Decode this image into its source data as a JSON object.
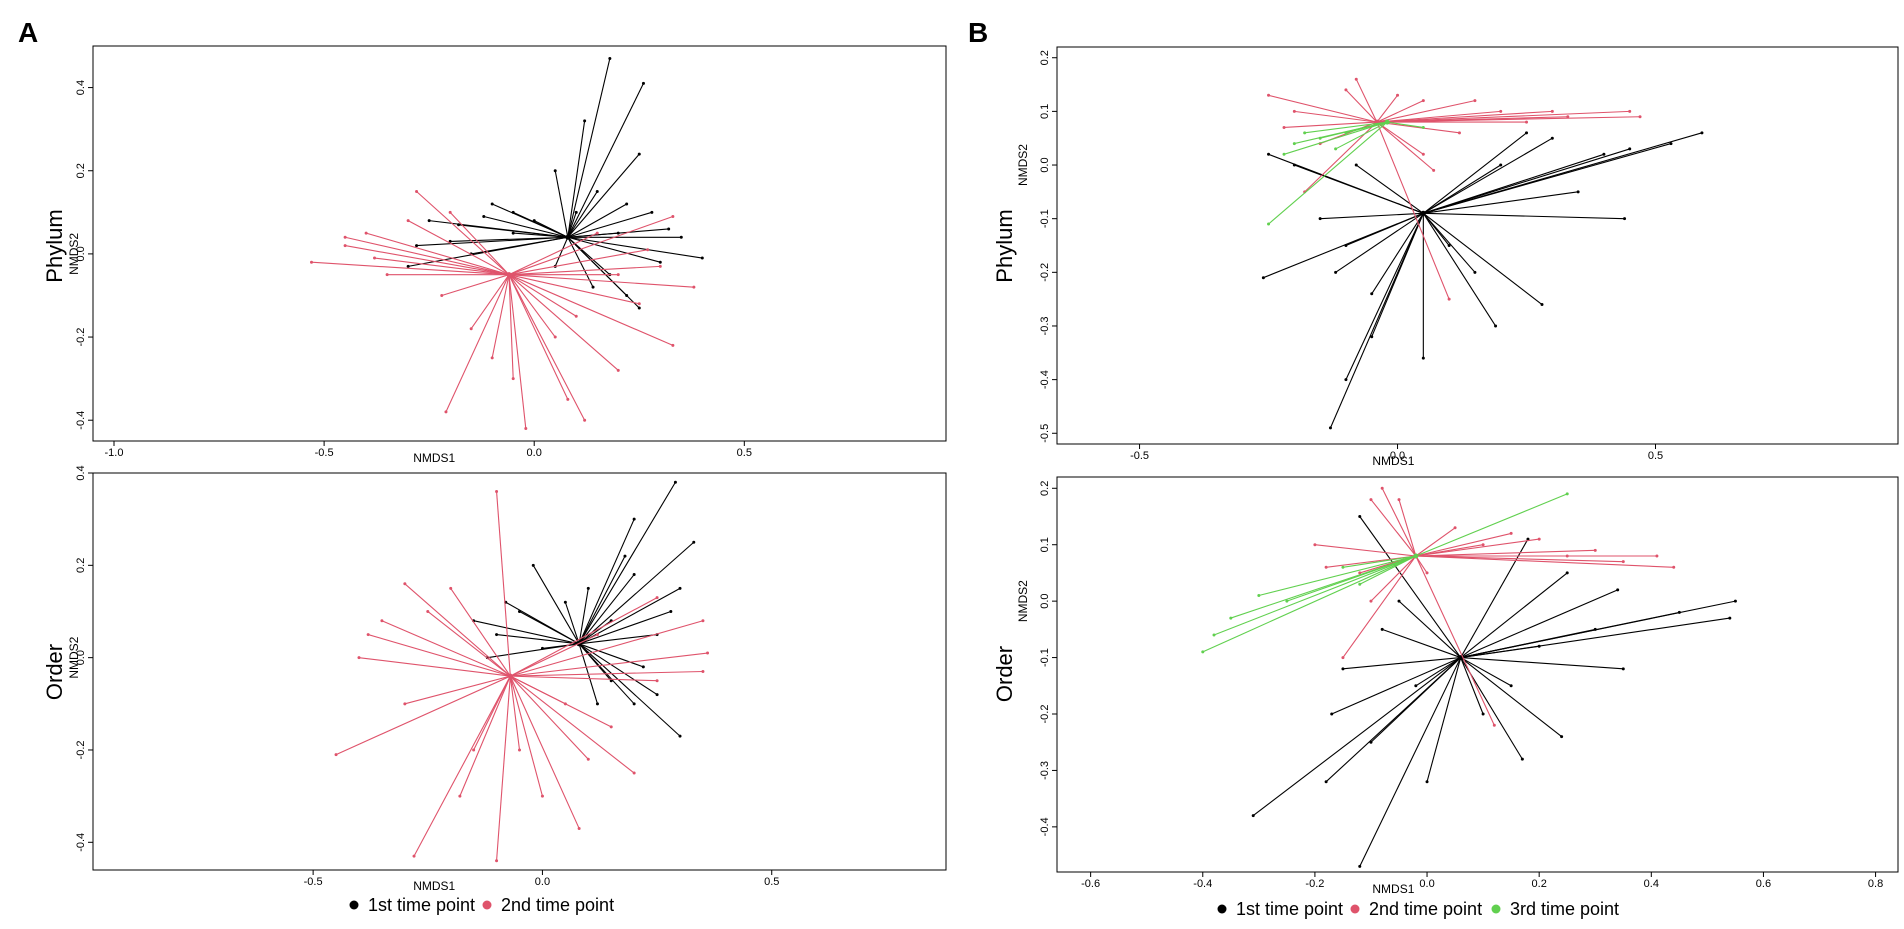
{
  "figure": {
    "panel_letters": [
      "A",
      "B"
    ],
    "legend_A": [
      {
        "label": "1st time point",
        "color": "#000000"
      },
      {
        "label": "2nd time point",
        "color": "#df536b"
      }
    ],
    "legend_B": [
      {
        "label": "1st time point",
        "color": "#000000"
      },
      {
        "label": "2nd time point",
        "color": "#df536b"
      },
      {
        "label": "3rd time point",
        "color": "#61d04f"
      }
    ]
  },
  "chart_data": [
    {
      "id": "A-phylum",
      "type": "scatter",
      "subtype": "spider",
      "panel": "A",
      "row_label": "Phylum",
      "xlabel": "NMDS1",
      "ylabel": "NMDS2",
      "xlim": [
        -1.05,
        0.98
      ],
      "ylim": [
        -0.45,
        0.5
      ],
      "xticks": [
        -1.0,
        -0.5,
        0.0,
        0.5
      ],
      "xtick_labels": [
        "-1.0",
        "-0.5",
        "0.0",
        "0.5"
      ],
      "yticks": [
        -0.4,
        -0.2,
        0.0,
        0.2,
        0.4
      ],
      "ytick_labels": [
        "-0.4",
        "-0.2",
        "0.0",
        "0.2",
        "0.4"
      ],
      "groups": [
        {
          "name": "1st time point",
          "color": "#000000",
          "centroid": [
            0.08,
            0.04
          ],
          "points": [
            [
              0.18,
              0.47
            ],
            [
              0.26,
              0.41
            ],
            [
              0.25,
              0.24
            ],
            [
              0.12,
              0.32
            ],
            [
              0.05,
              0.2
            ],
            [
              -0.25,
              0.08
            ],
            [
              -0.1,
              0.12
            ],
            [
              0.35,
              0.04
            ],
            [
              0.4,
              -0.01
            ],
            [
              0.3,
              -0.02
            ],
            [
              0.25,
              -0.13
            ],
            [
              0.22,
              -0.1
            ],
            [
              0.15,
              0.15
            ],
            [
              -0.05,
              0.05
            ],
            [
              0.0,
              0.08
            ],
            [
              -0.15,
              0.0
            ],
            [
              -0.2,
              0.03
            ],
            [
              -0.3,
              -0.03
            ],
            [
              0.1,
              0.1
            ],
            [
              0.2,
              0.05
            ],
            [
              0.28,
              0.1
            ],
            [
              -0.12,
              0.09
            ],
            [
              0.05,
              -0.03
            ],
            [
              -0.28,
              0.02
            ],
            [
              0.32,
              0.06
            ],
            [
              0.18,
              -0.05
            ],
            [
              -0.05,
              0.1
            ],
            [
              0.22,
              0.12
            ],
            [
              -0.18,
              0.07
            ],
            [
              0.14,
              -0.08
            ]
          ]
        },
        {
          "name": "2nd time point",
          "color": "#df536b",
          "centroid": [
            -0.06,
            -0.05
          ],
          "points": [
            [
              -0.53,
              -0.02
            ],
            [
              -0.45,
              0.02
            ],
            [
              -0.4,
              0.05
            ],
            [
              -0.35,
              -0.05
            ],
            [
              -0.28,
              0.15
            ],
            [
              -0.2,
              0.1
            ],
            [
              -0.21,
              -0.38
            ],
            [
              -0.02,
              -0.42
            ],
            [
              0.12,
              -0.4
            ],
            [
              0.2,
              -0.28
            ],
            [
              0.33,
              -0.22
            ],
            [
              0.38,
              -0.08
            ],
            [
              0.27,
              0.01
            ],
            [
              0.33,
              0.09
            ],
            [
              0.2,
              -0.05
            ],
            [
              -0.1,
              -0.25
            ],
            [
              -0.15,
              -0.18
            ],
            [
              0.05,
              -0.2
            ],
            [
              -0.3,
              0.08
            ],
            [
              0.25,
              -0.12
            ],
            [
              -0.38,
              -0.01
            ],
            [
              0.1,
              -0.15
            ],
            [
              -0.22,
              -0.1
            ],
            [
              0.3,
              -0.03
            ],
            [
              -0.45,
              0.04
            ],
            [
              0.15,
              0.05
            ],
            [
              -0.05,
              -0.3
            ],
            [
              0.08,
              -0.35
            ]
          ]
        }
      ]
    },
    {
      "id": "A-order",
      "type": "scatter",
      "subtype": "spider",
      "panel": "A",
      "row_label": "Order",
      "xlabel": "NMDS1",
      "ylabel": "NMDS2",
      "xlim": [
        -0.98,
        0.88
      ],
      "ylim": [
        -0.46,
        0.4
      ],
      "xticks": [
        -0.5,
        0.0,
        0.5
      ],
      "xtick_labels": [
        "-0.5",
        "0.0",
        "0.5"
      ],
      "yticks": [
        -0.4,
        -0.2,
        0.0,
        0.2,
        0.4
      ],
      "ytick_labels": [
        "-0.4",
        "-0.2",
        "0.0",
        "0.2",
        "0.4"
      ],
      "groups": [
        {
          "name": "1st time point",
          "color": "#000000",
          "centroid": [
            0.08,
            0.03
          ],
          "points": [
            [
              0.29,
              0.38
            ],
            [
              0.33,
              0.25
            ],
            [
              0.3,
              -0.17
            ],
            [
              0.2,
              -0.1
            ],
            [
              -0.05,
              0.1
            ],
            [
              0.0,
              0.02
            ],
            [
              -0.15,
              0.08
            ],
            [
              -0.1,
              0.05
            ],
            [
              0.2,
              0.18
            ],
            [
              0.25,
              0.05
            ],
            [
              0.15,
              -0.05
            ],
            [
              0.1,
              0.15
            ],
            [
              -0.02,
              0.2
            ],
            [
              0.28,
              0.1
            ],
            [
              0.18,
              0.22
            ],
            [
              0.05,
              0.12
            ],
            [
              -0.12,
              0.0
            ],
            [
              0.22,
              -0.02
            ],
            [
              0.3,
              0.15
            ],
            [
              0.15,
              0.08
            ],
            [
              0.25,
              -0.08
            ],
            [
              -0.08,
              0.12
            ],
            [
              0.12,
              -0.1
            ],
            [
              0.2,
              0.3
            ]
          ]
        },
        {
          "name": "2nd time point",
          "color": "#df536b",
          "centroid": [
            -0.07,
            -0.04
          ],
          "points": [
            [
              -0.45,
              -0.21
            ],
            [
              -0.1,
              0.36
            ],
            [
              -0.28,
              -0.43
            ],
            [
              -0.1,
              -0.44
            ],
            [
              0.08,
              -0.37
            ],
            [
              0.2,
              -0.25
            ],
            [
              0.35,
              0.08
            ],
            [
              0.36,
              0.01
            ],
            [
              0.35,
              -0.03
            ],
            [
              0.25,
              0.13
            ],
            [
              -0.35,
              0.08
            ],
            [
              -0.4,
              0.0
            ],
            [
              -0.3,
              0.16
            ],
            [
              -0.25,
              0.1
            ],
            [
              -0.2,
              0.15
            ],
            [
              -0.15,
              -0.2
            ],
            [
              0.0,
              -0.3
            ],
            [
              -0.05,
              -0.2
            ],
            [
              0.15,
              -0.15
            ],
            [
              0.12,
              0.05
            ],
            [
              -0.3,
              -0.1
            ],
            [
              -0.18,
              -0.3
            ],
            [
              0.05,
              -0.1
            ],
            [
              0.25,
              -0.05
            ],
            [
              -0.38,
              0.05
            ],
            [
              0.1,
              -0.22
            ]
          ]
        }
      ]
    },
    {
      "id": "B-phylum",
      "type": "scatter",
      "subtype": "spider",
      "panel": "B",
      "row_label": "Phylum",
      "xlabel": "NMDS1",
      "ylabel": "NMDS2",
      "xlim": [
        -0.66,
        0.97
      ],
      "ylim": [
        -0.52,
        0.22
      ],
      "xticks": [
        -0.5,
        0.0,
        0.5
      ],
      "xtick_labels": [
        "-0.5",
        "0.0",
        "0.5"
      ],
      "yticks": [
        -0.5,
        -0.4,
        -0.3,
        -0.2,
        -0.1,
        0.0,
        0.1,
        0.2
      ],
      "ytick_labels": [
        "-0.5",
        "-0.4",
        "-0.3",
        "-0.2",
        "-0.1",
        "0.0",
        "0.1",
        "0.2"
      ],
      "groups": [
        {
          "name": "1st time point",
          "color": "#000000",
          "centroid": [
            0.05,
            -0.09
          ],
          "points": [
            [
              -0.13,
              -0.49
            ],
            [
              -0.26,
              -0.21
            ],
            [
              0.59,
              0.06
            ],
            [
              0.53,
              0.04
            ],
            [
              0.44,
              -0.1
            ],
            [
              0.28,
              -0.26
            ],
            [
              0.19,
              -0.3
            ],
            [
              0.05,
              -0.36
            ],
            [
              -0.05,
              -0.32
            ],
            [
              -0.1,
              -0.4
            ],
            [
              0.4,
              0.02
            ],
            [
              0.3,
              0.05
            ],
            [
              0.2,
              0.0
            ],
            [
              -0.2,
              0.0
            ],
            [
              -0.25,
              0.02
            ],
            [
              -0.1,
              -0.15
            ],
            [
              -0.05,
              -0.24
            ],
            [
              0.1,
              -0.15
            ],
            [
              0.35,
              -0.05
            ],
            [
              -0.15,
              -0.1
            ],
            [
              0.25,
              0.06
            ],
            [
              -0.08,
              0.0
            ],
            [
              0.45,
              0.03
            ],
            [
              -0.12,
              -0.2
            ],
            [
              0.15,
              -0.2
            ]
          ]
        },
        {
          "name": "2nd time point",
          "color": "#df536b",
          "centroid": [
            -0.04,
            0.08
          ],
          "points": [
            [
              -0.25,
              0.13
            ],
            [
              -0.2,
              0.1
            ],
            [
              0.47,
              0.09
            ],
            [
              0.45,
              0.1
            ],
            [
              0.3,
              0.1
            ],
            [
              0.2,
              0.1
            ],
            [
              0.0,
              0.13
            ],
            [
              0.07,
              -0.01
            ],
            [
              0.1,
              -0.25
            ],
            [
              -0.1,
              0.14
            ],
            [
              0.05,
              0.12
            ],
            [
              -0.15,
              0.04
            ],
            [
              0.15,
              0.12
            ],
            [
              0.33,
              0.09
            ],
            [
              -0.18,
              -0.05
            ],
            [
              0.25,
              0.08
            ],
            [
              -0.22,
              0.07
            ],
            [
              0.12,
              0.06
            ],
            [
              -0.08,
              0.16
            ],
            [
              0.05,
              0.02
            ]
          ]
        },
        {
          "name": "3rd time point",
          "color": "#61d04f",
          "centroid": [
            -0.02,
            0.08
          ],
          "points": [
            [
              -0.25,
              -0.11
            ],
            [
              -0.2,
              0.04
            ],
            [
              -0.15,
              0.05
            ],
            [
              -0.1,
              0.06
            ],
            [
              -0.22,
              0.02
            ],
            [
              0.05,
              0.07
            ],
            [
              -0.12,
              0.03
            ],
            [
              -0.18,
              0.06
            ]
          ]
        }
      ]
    },
    {
      "id": "B-order",
      "type": "scatter",
      "subtype": "spider",
      "panel": "B",
      "row_label": "Order",
      "xlabel": "NMDS1",
      "ylabel": "NMDS2",
      "xlim": [
        -0.66,
        0.84
      ],
      "ylim": [
        -0.48,
        0.22
      ],
      "xticks": [
        -0.6,
        -0.4,
        -0.2,
        0.0,
        0.2,
        0.4,
        0.6,
        0.8
      ],
      "xtick_labels": [
        "-0.6",
        "-0.4",
        "-0.2",
        "0.0",
        "0.2",
        "0.4",
        "0.6",
        "0.8"
      ],
      "yticks": [
        -0.4,
        -0.3,
        -0.2,
        -0.1,
        0.0,
        0.1,
        0.2
      ],
      "ytick_labels": [
        "-0.4",
        "-0.3",
        "-0.2",
        "-0.1",
        "0.0",
        "0.1",
        "0.2"
      ],
      "groups": [
        {
          "name": "1st time point",
          "color": "#000000",
          "centroid": [
            0.06,
            -0.1
          ],
          "points": [
            [
              -0.31,
              -0.38
            ],
            [
              -0.18,
              -0.32
            ],
            [
              -0.12,
              -0.47
            ],
            [
              0.55,
              0.0
            ],
            [
              0.54,
              -0.03
            ],
            [
              0.34,
              0.02
            ],
            [
              0.24,
              -0.24
            ],
            [
              0.17,
              -0.28
            ],
            [
              0.0,
              -0.32
            ],
            [
              -0.15,
              -0.12
            ],
            [
              -0.17,
              -0.2
            ],
            [
              0.18,
              0.11
            ],
            [
              0.3,
              -0.05
            ],
            [
              -0.05,
              0.0
            ],
            [
              -0.08,
              -0.05
            ],
            [
              0.35,
              -0.12
            ],
            [
              0.1,
              -0.2
            ],
            [
              0.25,
              0.05
            ],
            [
              -0.1,
              -0.25
            ],
            [
              0.45,
              -0.02
            ],
            [
              -0.02,
              -0.15
            ],
            [
              0.15,
              -0.15
            ],
            [
              -0.12,
              0.15
            ],
            [
              0.2,
              -0.08
            ]
          ]
        },
        {
          "name": "2nd time point",
          "color": "#df536b",
          "centroid": [
            -0.02,
            0.08
          ],
          "points": [
            [
              -0.08,
              0.2
            ],
            [
              0.44,
              0.06
            ],
            [
              0.41,
              0.08
            ],
            [
              0.2,
              0.11
            ],
            [
              0.15,
              0.12
            ],
            [
              0.05,
              0.13
            ],
            [
              -0.1,
              0.18
            ],
            [
              -0.05,
              0.18
            ],
            [
              -0.15,
              -0.1
            ],
            [
              -0.1,
              0.0
            ],
            [
              0.0,
              0.05
            ],
            [
              0.1,
              0.1
            ],
            [
              0.3,
              0.09
            ],
            [
              -0.2,
              0.1
            ],
            [
              0.12,
              -0.22
            ],
            [
              0.35,
              0.07
            ],
            [
              -0.12,
              0.05
            ],
            [
              -0.18,
              0.06
            ],
            [
              0.25,
              0.08
            ]
          ]
        },
        {
          "name": "3rd time point",
          "color": "#61d04f",
          "centroid": [
            -0.02,
            0.08
          ],
          "points": [
            [
              -0.4,
              -0.09
            ],
            [
              -0.38,
              -0.06
            ],
            [
              -0.35,
              -0.03
            ],
            [
              -0.3,
              0.01
            ],
            [
              0.25,
              0.19
            ],
            [
              -0.15,
              0.06
            ],
            [
              -0.12,
              0.03
            ],
            [
              -0.25,
              0.0
            ]
          ]
        }
      ]
    }
  ]
}
